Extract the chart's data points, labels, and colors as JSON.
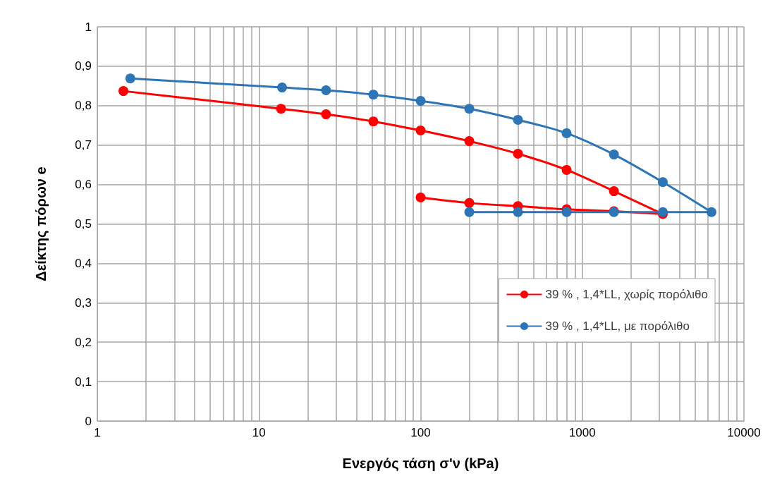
{
  "chart_data": {
    "type": "line",
    "xlabel": "Ενεργός τάση σ'ν (kPa)",
    "ylabel": "Δείκτης πόρων e",
    "log": "x",
    "grid": true,
    "legend": "right",
    "marker": "circle",
    "line_style": "solid",
    "xlim": [
      1,
      10000
    ],
    "xticks": [
      1,
      10,
      100,
      1000,
      10000
    ],
    "ylim": [
      0,
      1
    ],
    "yticks": [
      0,
      {
        "value": 0.1,
        "label": "0,1"
      },
      {
        "value": 0.2,
        "label": "0,2"
      },
      {
        "value": 0.3,
        "label": "0,3"
      },
      {
        "value": 0.4,
        "label": "0,4"
      },
      {
        "value": 0.5,
        "label": "0,5"
      },
      {
        "value": 0.6,
        "label": "0,6"
      },
      {
        "value": 0.7,
        "label": "0,7"
      },
      {
        "value": 0.8,
        "label": "0,8"
      },
      {
        "value": 0.9,
        "label": "0,9"
      },
      1
    ],
    "series": [
      {
        "name": "39 % , 1,4*LL, χωρίς πορόλιθο",
        "color": "#ff0000",
        "x": [
          1.45,
          13.7,
          26,
          51,
          100,
          200,
          400,
          800,
          1570,
          3150,
          1570,
          800,
          400,
          200,
          100
        ],
        "values": [
          0.837,
          0.792,
          0.778,
          0.76,
          0.737,
          0.71,
          0.678,
          0.637,
          0.583,
          0.525,
          0.532,
          0.537,
          0.545,
          0.553,
          0.567
        ]
      },
      {
        "name": "39 % , 1,4*LL, με πορόλιθο",
        "color": "#2e75b6",
        "x": [
          1.6,
          13.9,
          26,
          51,
          100,
          200,
          400,
          800,
          1570,
          3150,
          6300,
          3150,
          1570,
          800,
          400,
          200
        ],
        "values": [
          0.869,
          0.846,
          0.839,
          0.828,
          0.812,
          0.792,
          0.764,
          0.73,
          0.676,
          0.606,
          0.53,
          0.53,
          0.53,
          0.53,
          0.53,
          0.53
        ]
      }
    ]
  }
}
